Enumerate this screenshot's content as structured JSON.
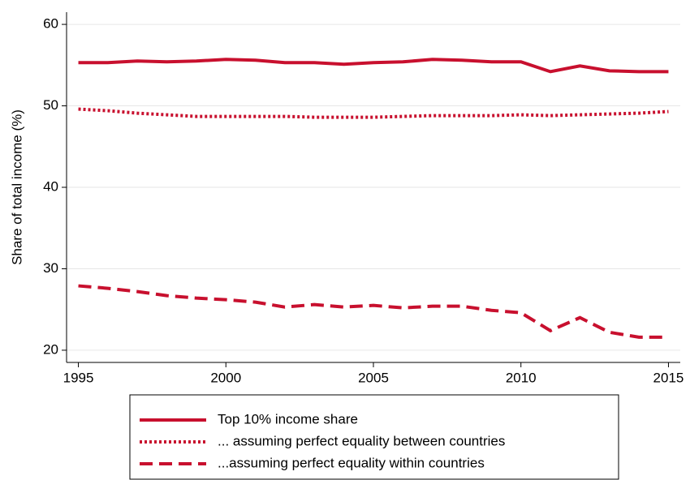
{
  "chart_data": {
    "type": "line",
    "y_label": "Share of total income (%)",
    "x": [
      1995,
      1996,
      1997,
      1998,
      1999,
      2000,
      2001,
      2002,
      2003,
      2004,
      2005,
      2006,
      2007,
      2008,
      2009,
      2010,
      2011,
      2012,
      2013,
      2014,
      2015
    ],
    "series": [
      {
        "name": "Top 10% income share",
        "color": "#c8102e",
        "dash": "solid",
        "values": [
          55.3,
          55.3,
          55.5,
          55.4,
          55.5,
          55.7,
          55.6,
          55.3,
          55.3,
          55.1,
          55.3,
          55.4,
          55.7,
          55.6,
          55.4,
          55.4,
          54.2,
          54.9,
          54.3,
          54.2,
          54.2
        ]
      },
      {
        "name": "... assuming perfect equality between countries",
        "color": "#c8102e",
        "dash": "dotted",
        "values": [
          49.6,
          49.4,
          49.1,
          48.9,
          48.7,
          48.7,
          48.7,
          48.7,
          48.6,
          48.6,
          48.6,
          48.7,
          48.8,
          48.8,
          48.8,
          48.9,
          48.8,
          48.9,
          49.0,
          49.1,
          49.3
        ]
      },
      {
        "name": "...assuming perfect equality within countries",
        "color": "#c8102e",
        "dash": "dashed",
        "values": [
          27.9,
          27.6,
          27.2,
          26.7,
          26.4,
          26.2,
          25.9,
          25.3,
          25.6,
          25.3,
          25.5,
          25.2,
          25.4,
          25.4,
          24.9,
          24.6,
          22.4,
          24.0,
          22.2,
          21.6,
          21.6
        ]
      }
    ],
    "xlim": [
      1994.6,
      2015.4
    ],
    "xticks": [
      1995,
      2000,
      2005,
      2010,
      2015
    ],
    "ylim": [
      18.5,
      61.5
    ],
    "yticks": [
      20,
      30,
      40,
      50,
      60
    ],
    "grid": true
  }
}
